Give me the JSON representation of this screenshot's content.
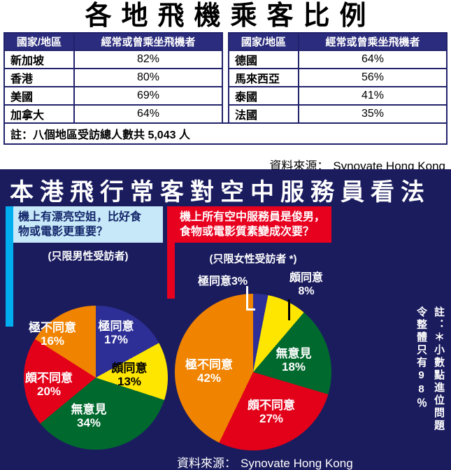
{
  "top": {
    "title": "各地飛機乘客比例",
    "col_headers": [
      "國家/地區",
      "經常或曾乘坐飛機者"
    ],
    "left_rows": [
      [
        "新加坡",
        "82%"
      ],
      [
        "香港",
        "80%"
      ],
      [
        "美國",
        "69%"
      ],
      [
        "加拿大",
        "64%"
      ]
    ],
    "right_rows": [
      [
        "德國",
        "64%"
      ],
      [
        "馬來西亞",
        "56%"
      ],
      [
        "泰國",
        "41%"
      ],
      [
        "法國",
        "35%"
      ]
    ],
    "note": "註：八個地區受訪總人數共 5,043 人",
    "source_label": "資料來源：",
    "source_value": "Synovate Hong Kong"
  },
  "bottom": {
    "title": "本港飛行常客對空中服務員看法",
    "left_question": "機上有漂亮空姐，比好食\n物或電影更重要？",
    "left_scope": "(只限男性受訪者)",
    "right_question": "機上所有空中服務員是俊男，\n食物或電影質素變成次要？",
    "right_scope": "(只限女性受訪者 *)",
    "vertical_note": "註：＊小數點進位問題\n令整體只有98％",
    "source_label": "資料來源：",
    "source_value": "Synovate Hong Kong"
  },
  "chart_data": [
    {
      "type": "table",
      "title": "各地飛機乘客比例",
      "columns": [
        "國家/地區",
        "經常或曾乘坐飛機者"
      ],
      "rows": [
        [
          "新加坡",
          "82%"
        ],
        [
          "香港",
          "80%"
        ],
        [
          "美國",
          "69%"
        ],
        [
          "加拿大",
          "64%"
        ],
        [
          "德國",
          "64%"
        ],
        [
          "馬來西亞",
          "56%"
        ],
        [
          "泰國",
          "41%"
        ],
        [
          "法國",
          "35%"
        ]
      ],
      "note": "八個地區受訪總人數共 5,043 人"
    },
    {
      "type": "pie",
      "title": "機上有漂亮空姐，比好食物或電影更重要？(只限男性受訪者)",
      "labels": [
        "極同意",
        "頗同意",
        "無意見",
        "頗不同意",
        "極不同意"
      ],
      "values": [
        17,
        13,
        34,
        20,
        16
      ],
      "value_labels": [
        "17%",
        "13%",
        "34%",
        "20%",
        "16%"
      ],
      "colors": [
        "#2e2f96",
        "#ffe600",
        "#00692e",
        "#e30019",
        "#f08300"
      ],
      "order": "clockwise-from-top"
    },
    {
      "type": "pie",
      "title": "機上所有空中服務員是俊男，食物或電影質素變成次要？(只限女性受訪者 *)",
      "labels": [
        "極同意",
        "頗同意",
        "無意見",
        "頗不同意",
        "極不同意"
      ],
      "values": [
        3,
        8,
        18,
        27,
        42
      ],
      "value_labels": [
        "3%",
        "8%",
        "18%",
        "27%",
        "42%"
      ],
      "colors": [
        "#2e2f96",
        "#ffe600",
        "#00692e",
        "#e30019",
        "#f08300"
      ],
      "order": "clockwise-from-top"
    }
  ]
}
